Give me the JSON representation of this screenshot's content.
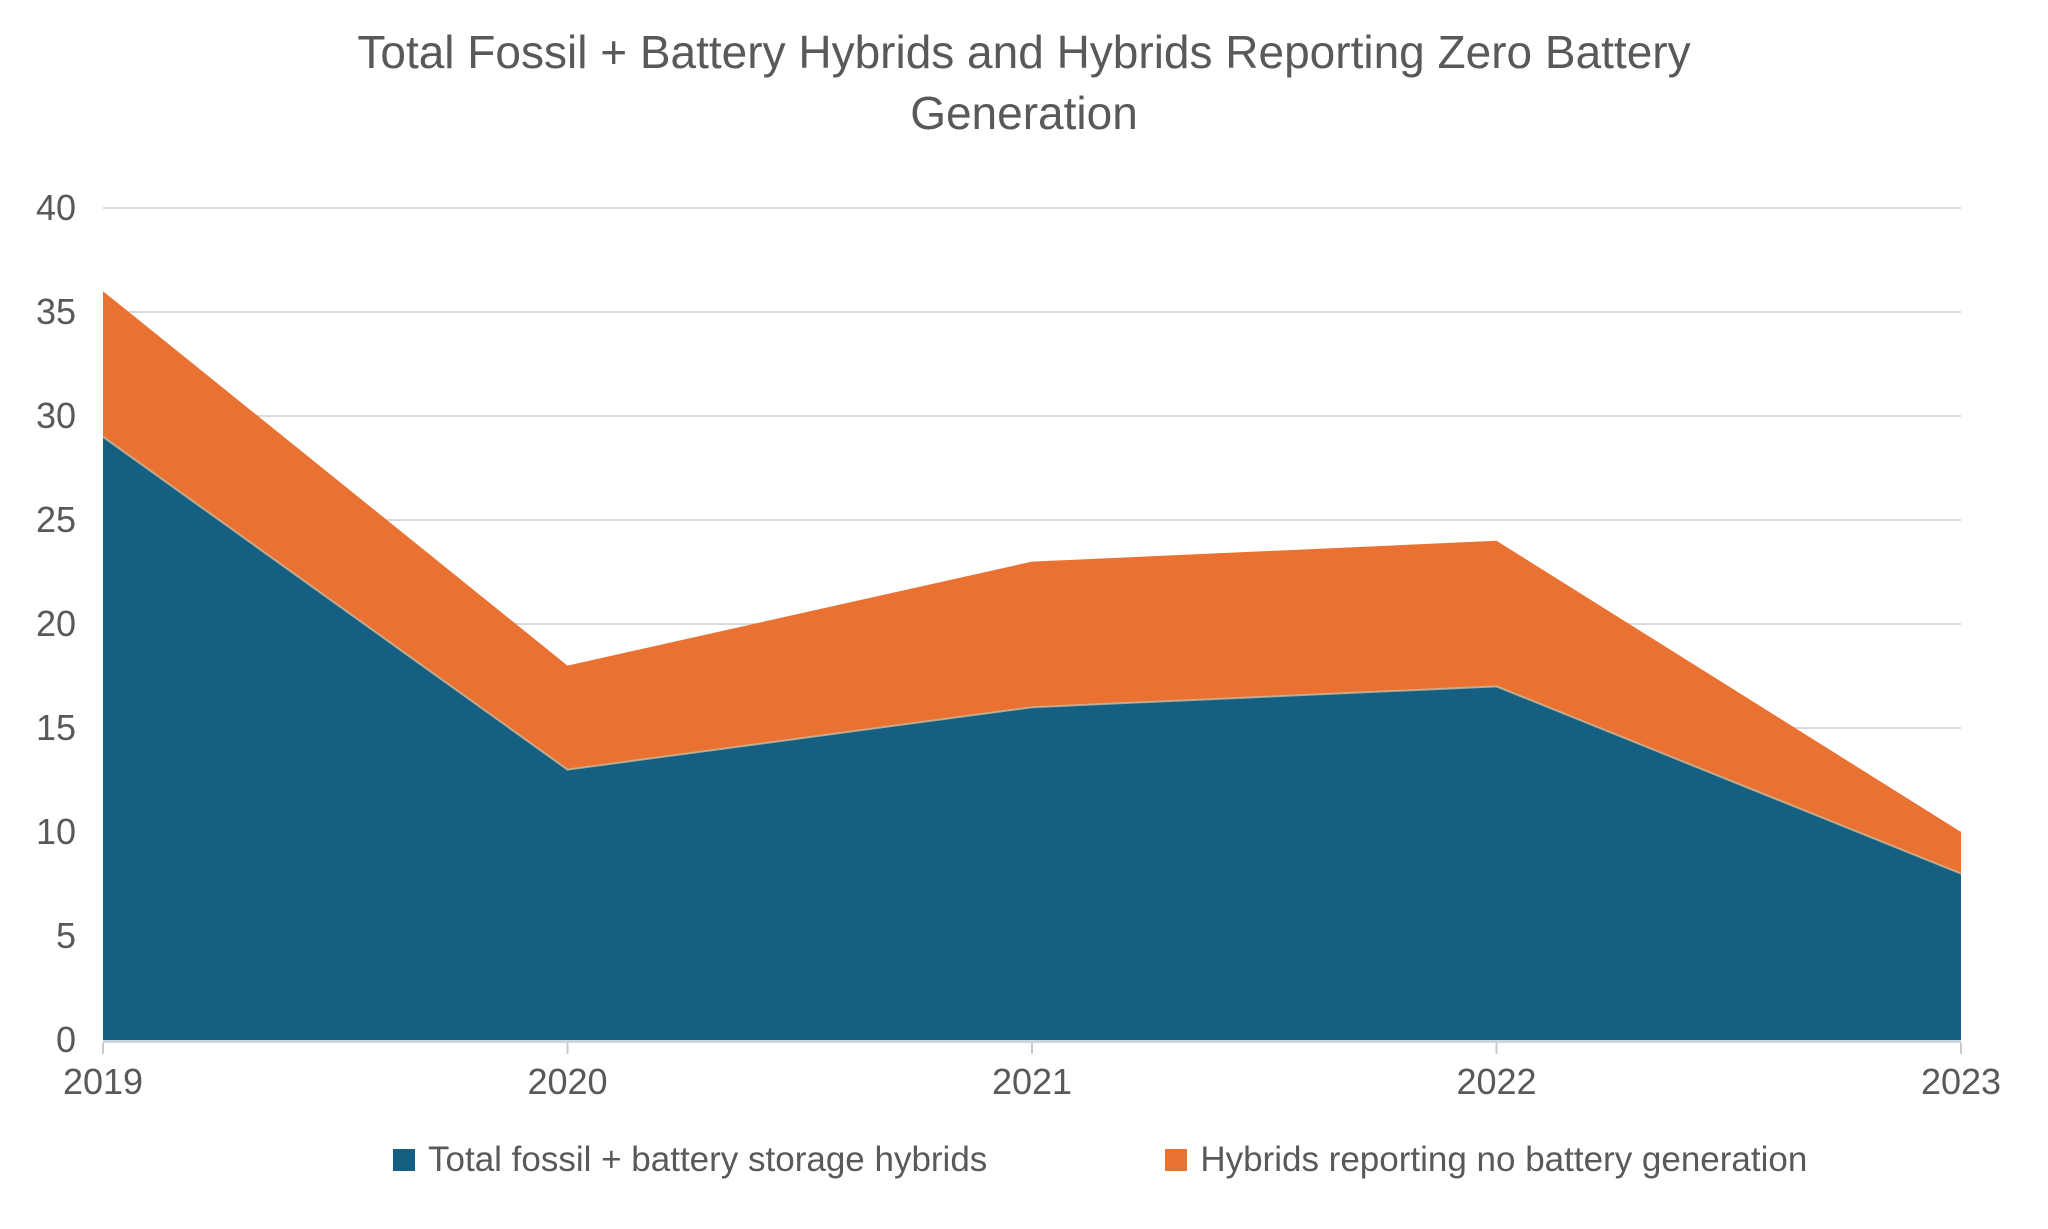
{
  "title": {
    "line1": "Total Fossil + Battery Hybrids and Hybrids Reporting Zero Battery",
    "line2": "Generation"
  },
  "chart_data": {
    "type": "area",
    "stacked": true,
    "title": "Total Fossil + Battery Hybrids and Hybrids Reporting Zero Battery Generation",
    "categories": [
      "2019",
      "2020",
      "2021",
      "2022",
      "2023"
    ],
    "series": [
      {
        "name": "Total fossil + battery storage hybrids",
        "color": "#156082",
        "values": [
          29,
          13,
          16,
          17,
          8
        ]
      },
      {
        "name": "Hybrids reporting no battery generation",
        "color": "#E97132",
        "values": [
          7,
          5,
          7,
          7,
          2
        ],
        "cumulative_top": [
          36,
          18,
          23,
          24,
          10
        ]
      }
    ],
    "ylim": [
      0,
      40
    ],
    "ytick_interval": 5,
    "ytick_labels": [
      "0",
      "5",
      "10",
      "15",
      "20",
      "25",
      "30",
      "35",
      "40"
    ],
    "xlabel": "",
    "ylabel": "",
    "grid": true,
    "legend_position": "bottom"
  },
  "colors": {
    "blue": "#156082",
    "orange": "#E97132",
    "grid": "#D9D9D9",
    "axis": "#CBD5DB",
    "tick": "#C9C9C9",
    "text": "#595959",
    "boundary": "rgba(205,185,155,0.8)"
  }
}
